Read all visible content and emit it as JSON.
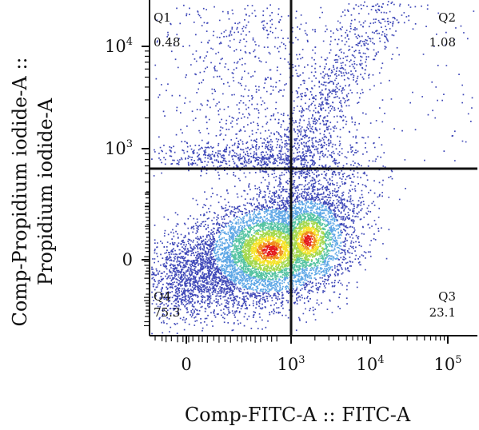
{
  "chart_data": {
    "type": "scatter",
    "subtype": "flow-cytometry density dot plot (pseudocolor)",
    "xlabel": "Comp-FITC-A :: FITC-A",
    "ylabel_lines": [
      "Comp-Propidium iodide-A ::",
      "Propidium iodide-A"
    ],
    "x_scale": "biexponential",
    "y_scale": "biexponential",
    "x_ticks": [
      {
        "base": "0",
        "exp": ""
      },
      {
        "base": "10",
        "exp": "3"
      },
      {
        "base": "10",
        "exp": "4"
      },
      {
        "base": "10",
        "exp": "5"
      }
    ],
    "y_ticks": [
      {
        "base": "0",
        "exp": ""
      },
      {
        "base": "10",
        "exp": "3"
      },
      {
        "base": "10",
        "exp": "4"
      }
    ],
    "gate": {
      "x_threshold": "10^3",
      "y_threshold": "≈6×10^2"
    },
    "quadrants": [
      {
        "name": "Q1",
        "value": "0.48"
      },
      {
        "name": "Q2",
        "value": "1.08"
      },
      {
        "name": "Q3",
        "value": "23.1"
      },
      {
        "name": "Q4",
        "value": "75.3"
      }
    ],
    "density_colors": [
      "#3f48b8",
      "#5ea7e6",
      "#56c4a2",
      "#a4d84e",
      "#f4e32a",
      "#f08a1c",
      "#e31a1c"
    ],
    "grid": false,
    "legend": "none"
  }
}
